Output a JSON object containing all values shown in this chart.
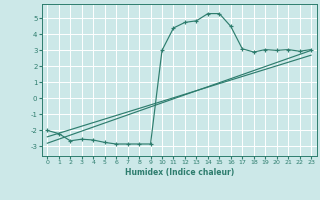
{
  "xlabel": "Humidex (Indice chaleur)",
  "ylabel": "",
  "xlim": [
    -0.5,
    23.5
  ],
  "ylim": [
    -3.6,
    5.9
  ],
  "xticks": [
    0,
    1,
    2,
    3,
    4,
    5,
    6,
    7,
    8,
    9,
    10,
    11,
    12,
    13,
    14,
    15,
    16,
    17,
    18,
    19,
    20,
    21,
    22,
    23
  ],
  "yticks": [
    -3,
    -2,
    -1,
    0,
    1,
    2,
    3,
    4,
    5
  ],
  "bg_color": "#cce8e8",
  "grid_color": "#ffffff",
  "line_color": "#2e7d6e",
  "curve_x": [
    0,
    1,
    2,
    3,
    4,
    5,
    6,
    7,
    8,
    9,
    10,
    11,
    12,
    13,
    14,
    15,
    16,
    17,
    18,
    19,
    20,
    21,
    22,
    23
  ],
  "curve_y": [
    -2.0,
    -2.2,
    -2.65,
    -2.55,
    -2.6,
    -2.75,
    -2.85,
    -2.85,
    -2.85,
    -2.85,
    3.0,
    4.4,
    4.75,
    4.85,
    5.3,
    5.3,
    4.5,
    3.1,
    2.9,
    3.05,
    3.0,
    3.05,
    2.95,
    3.05
  ],
  "line1_x": [
    0,
    23
  ],
  "line1_y": [
    -2.8,
    3.0
  ],
  "line2_x": [
    0,
    23
  ],
  "line2_y": [
    -2.4,
    2.7
  ],
  "xlabel_fontsize": 5.5,
  "xlabel_fontweight": "bold",
  "tick_fontsize": 4.5,
  "ytick_fontsize": 5.0
}
